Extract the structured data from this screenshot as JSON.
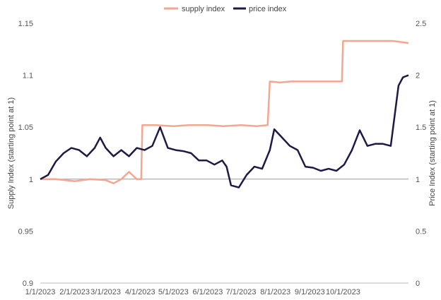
{
  "chart_data": {
    "type": "line",
    "colors": {
      "supply": "#f4a690",
      "price": "#1d1a45",
      "baseline": "#9a9a9a"
    },
    "legend": {
      "position": "top-center",
      "items": [
        "supply index",
        "price index"
      ]
    },
    "left_axis": {
      "label": "Supply Index (starting point at 1)",
      "ylim": [
        0.9,
        1.15
      ],
      "ticks": [
        0.9,
        0.95,
        1,
        1.05,
        1.1,
        1.15
      ],
      "tick_labels": [
        "0.9",
        "0.95",
        "1",
        "1.05",
        "1.1",
        "1.15"
      ]
    },
    "right_axis": {
      "label": "Price Index (starting point at 1)",
      "ylim": [
        0,
        2.5
      ],
      "ticks": [
        0,
        0.5,
        1,
        1.5,
        2,
        2.5
      ],
      "tick_labels": [
        "0",
        "0.5",
        "1",
        "1.5",
        "2",
        "2.5"
      ]
    },
    "x_axis": {
      "range": [
        "2023-01-01",
        "2023-11-29"
      ],
      "tick_dates": [
        "2023-01-01",
        "2023-02-01",
        "2023-03-01",
        "2023-04-01",
        "2023-05-01",
        "2023-06-01",
        "2023-07-01",
        "2023-08-01",
        "2023-09-01",
        "2023-10-01"
      ],
      "tick_labels": [
        "1/1/2023",
        "2/1/2023",
        "3/1/2023",
        "4/1/2023",
        "5/1/2023",
        "6/1/2023",
        "7/1/2023",
        "8/1/2023",
        "9/1/2023",
        "10/1/2023"
      ]
    },
    "baseline_value": 1,
    "grid": false,
    "series": [
      {
        "name": "supply index",
        "axis": "left",
        "points": [
          [
            "2023-01-01",
            1.0
          ],
          [
            "2023-01-15",
            1.0
          ],
          [
            "2023-02-01",
            0.998
          ],
          [
            "2023-02-15",
            1.0
          ],
          [
            "2023-03-01",
            0.999
          ],
          [
            "2023-03-08",
            0.996
          ],
          [
            "2023-03-15",
            1.0
          ],
          [
            "2023-03-22",
            1.007
          ],
          [
            "2023-03-29",
            1.0
          ],
          [
            "2023-04-02",
            1.0
          ],
          [
            "2023-04-03",
            1.052
          ],
          [
            "2023-04-15",
            1.052
          ],
          [
            "2023-05-01",
            1.051
          ],
          [
            "2023-05-15",
            1.052
          ],
          [
            "2023-06-01",
            1.052
          ],
          [
            "2023-06-15",
            1.051
          ],
          [
            "2023-07-01",
            1.052
          ],
          [
            "2023-07-15",
            1.051
          ],
          [
            "2023-07-25",
            1.052
          ],
          [
            "2023-07-27",
            1.094
          ],
          [
            "2023-08-05",
            1.093
          ],
          [
            "2023-08-15",
            1.094
          ],
          [
            "2023-09-01",
            1.094
          ],
          [
            "2023-09-15",
            1.094
          ],
          [
            "2023-09-30",
            1.094
          ],
          [
            "2023-10-01",
            1.133
          ],
          [
            "2023-10-15",
            1.133
          ],
          [
            "2023-11-01",
            1.133
          ],
          [
            "2023-11-15",
            1.133
          ],
          [
            "2023-11-29",
            1.131
          ]
        ]
      },
      {
        "name": "price index",
        "axis": "right",
        "points": [
          [
            "2023-01-01",
            1.0
          ],
          [
            "2023-01-08",
            1.04
          ],
          [
            "2023-01-15",
            1.17
          ],
          [
            "2023-01-22",
            1.25
          ],
          [
            "2023-01-29",
            1.3
          ],
          [
            "2023-02-05",
            1.28
          ],
          [
            "2023-02-12",
            1.22
          ],
          [
            "2023-02-19",
            1.3
          ],
          [
            "2023-02-24",
            1.4
          ],
          [
            "2023-03-01",
            1.3
          ],
          [
            "2023-03-08",
            1.22
          ],
          [
            "2023-03-15",
            1.28
          ],
          [
            "2023-03-22",
            1.22
          ],
          [
            "2023-03-29",
            1.3
          ],
          [
            "2023-04-05",
            1.28
          ],
          [
            "2023-04-12",
            1.32
          ],
          [
            "2023-04-19",
            1.5
          ],
          [
            "2023-04-26",
            1.3
          ],
          [
            "2023-05-03",
            1.28
          ],
          [
            "2023-05-10",
            1.27
          ],
          [
            "2023-05-17",
            1.25
          ],
          [
            "2023-05-24",
            1.18
          ],
          [
            "2023-05-31",
            1.18
          ],
          [
            "2023-06-07",
            1.14
          ],
          [
            "2023-06-14",
            1.18
          ],
          [
            "2023-06-18",
            1.12
          ],
          [
            "2023-06-22",
            0.94
          ],
          [
            "2023-06-29",
            0.92
          ],
          [
            "2023-07-06",
            1.04
          ],
          [
            "2023-07-13",
            1.12
          ],
          [
            "2023-07-20",
            1.1
          ],
          [
            "2023-07-27",
            1.28
          ],
          [
            "2023-07-31",
            1.48
          ],
          [
            "2023-08-07",
            1.4
          ],
          [
            "2023-08-14",
            1.32
          ],
          [
            "2023-08-21",
            1.28
          ],
          [
            "2023-08-28",
            1.12
          ],
          [
            "2023-09-04",
            1.11
          ],
          [
            "2023-09-11",
            1.08
          ],
          [
            "2023-09-18",
            1.1
          ],
          [
            "2023-09-25",
            1.08
          ],
          [
            "2023-10-02",
            1.14
          ],
          [
            "2023-10-09",
            1.28
          ],
          [
            "2023-10-16",
            1.47
          ],
          [
            "2023-10-23",
            1.32
          ],
          [
            "2023-10-30",
            1.34
          ],
          [
            "2023-11-06",
            1.34
          ],
          [
            "2023-11-13",
            1.32
          ],
          [
            "2023-11-20",
            1.9
          ],
          [
            "2023-11-24",
            1.98
          ],
          [
            "2023-11-29",
            2.0
          ]
        ]
      }
    ]
  }
}
